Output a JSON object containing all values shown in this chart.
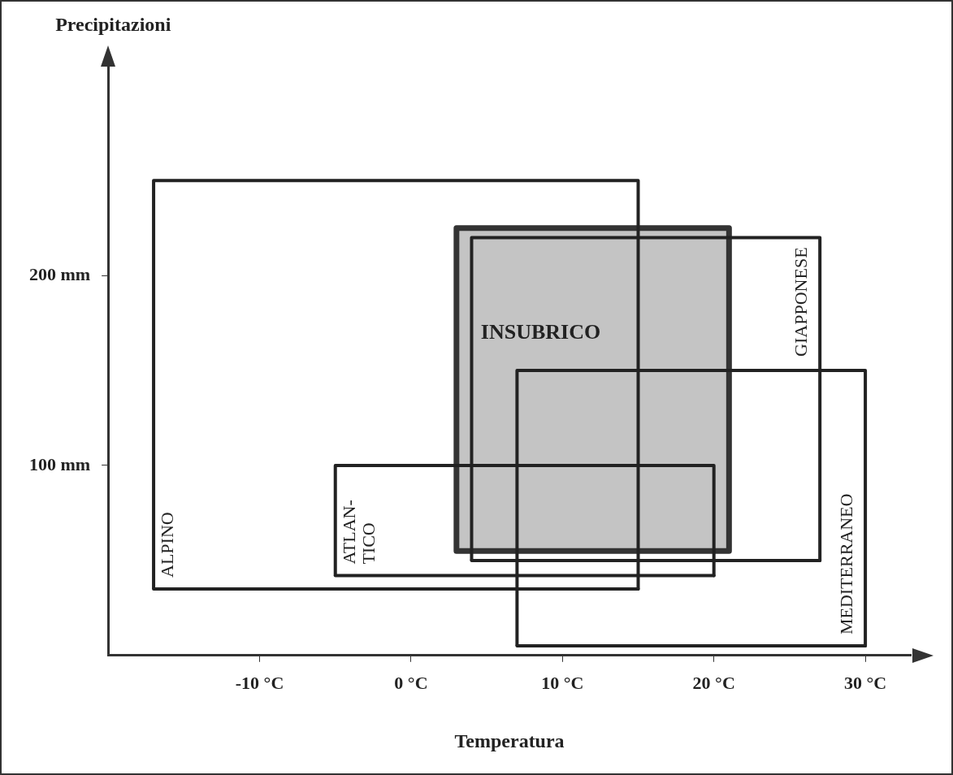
{
  "chart_data": {
    "type": "line",
    "xlabel": "Temperatura",
    "ylabel": "Precipitazioni",
    "marker": "none",
    "grid": false,
    "legend": false,
    "xlim": [
      -20,
      33
    ],
    "ylim": [
      0,
      310
    ],
    "xticks": [
      {
        "value": -10,
        "label": "-10 °C"
      },
      {
        "value": 0,
        "label": "0 °C"
      },
      {
        "value": 10,
        "label": "10 °C"
      },
      {
        "value": 20,
        "label": "20 °C"
      },
      {
        "value": 30,
        "label": "30 °C"
      }
    ],
    "yticks": [
      {
        "value": 100,
        "label": "100 mm"
      },
      {
        "value": 200,
        "label": "200 mm"
      }
    ],
    "series": [
      {
        "name": "ALPINO",
        "type": "line",
        "color": "#222222",
        "x": [
          -17,
          -17,
          15,
          15
        ],
        "values": [
          35,
          250,
          250,
          35
        ]
      },
      {
        "name": "ATLAN-\nTICO",
        "type": "line",
        "color": "#222222",
        "x": [
          -5,
          -5,
          20,
          20
        ],
        "values": [
          42,
          100,
          100,
          42
        ]
      },
      {
        "name": "INSUBRICO",
        "type": "area",
        "color": "#c4c4c4",
        "x": [
          3,
          21,
          21,
          3,
          3
        ],
        "values": [
          55,
          55,
          225,
          225,
          55
        ]
      },
      {
        "name": "GIAPPONESE",
        "type": "line",
        "color": "#222222",
        "x": [
          4,
          4,
          27,
          27
        ],
        "values": [
          50,
          220,
          220,
          50
        ]
      },
      {
        "name": "MEDITERRANEO",
        "type": "line",
        "color": "#222222",
        "x": [
          7,
          7,
          30,
          30
        ],
        "values": [
          5,
          150,
          150,
          5
        ]
      }
    ]
  }
}
